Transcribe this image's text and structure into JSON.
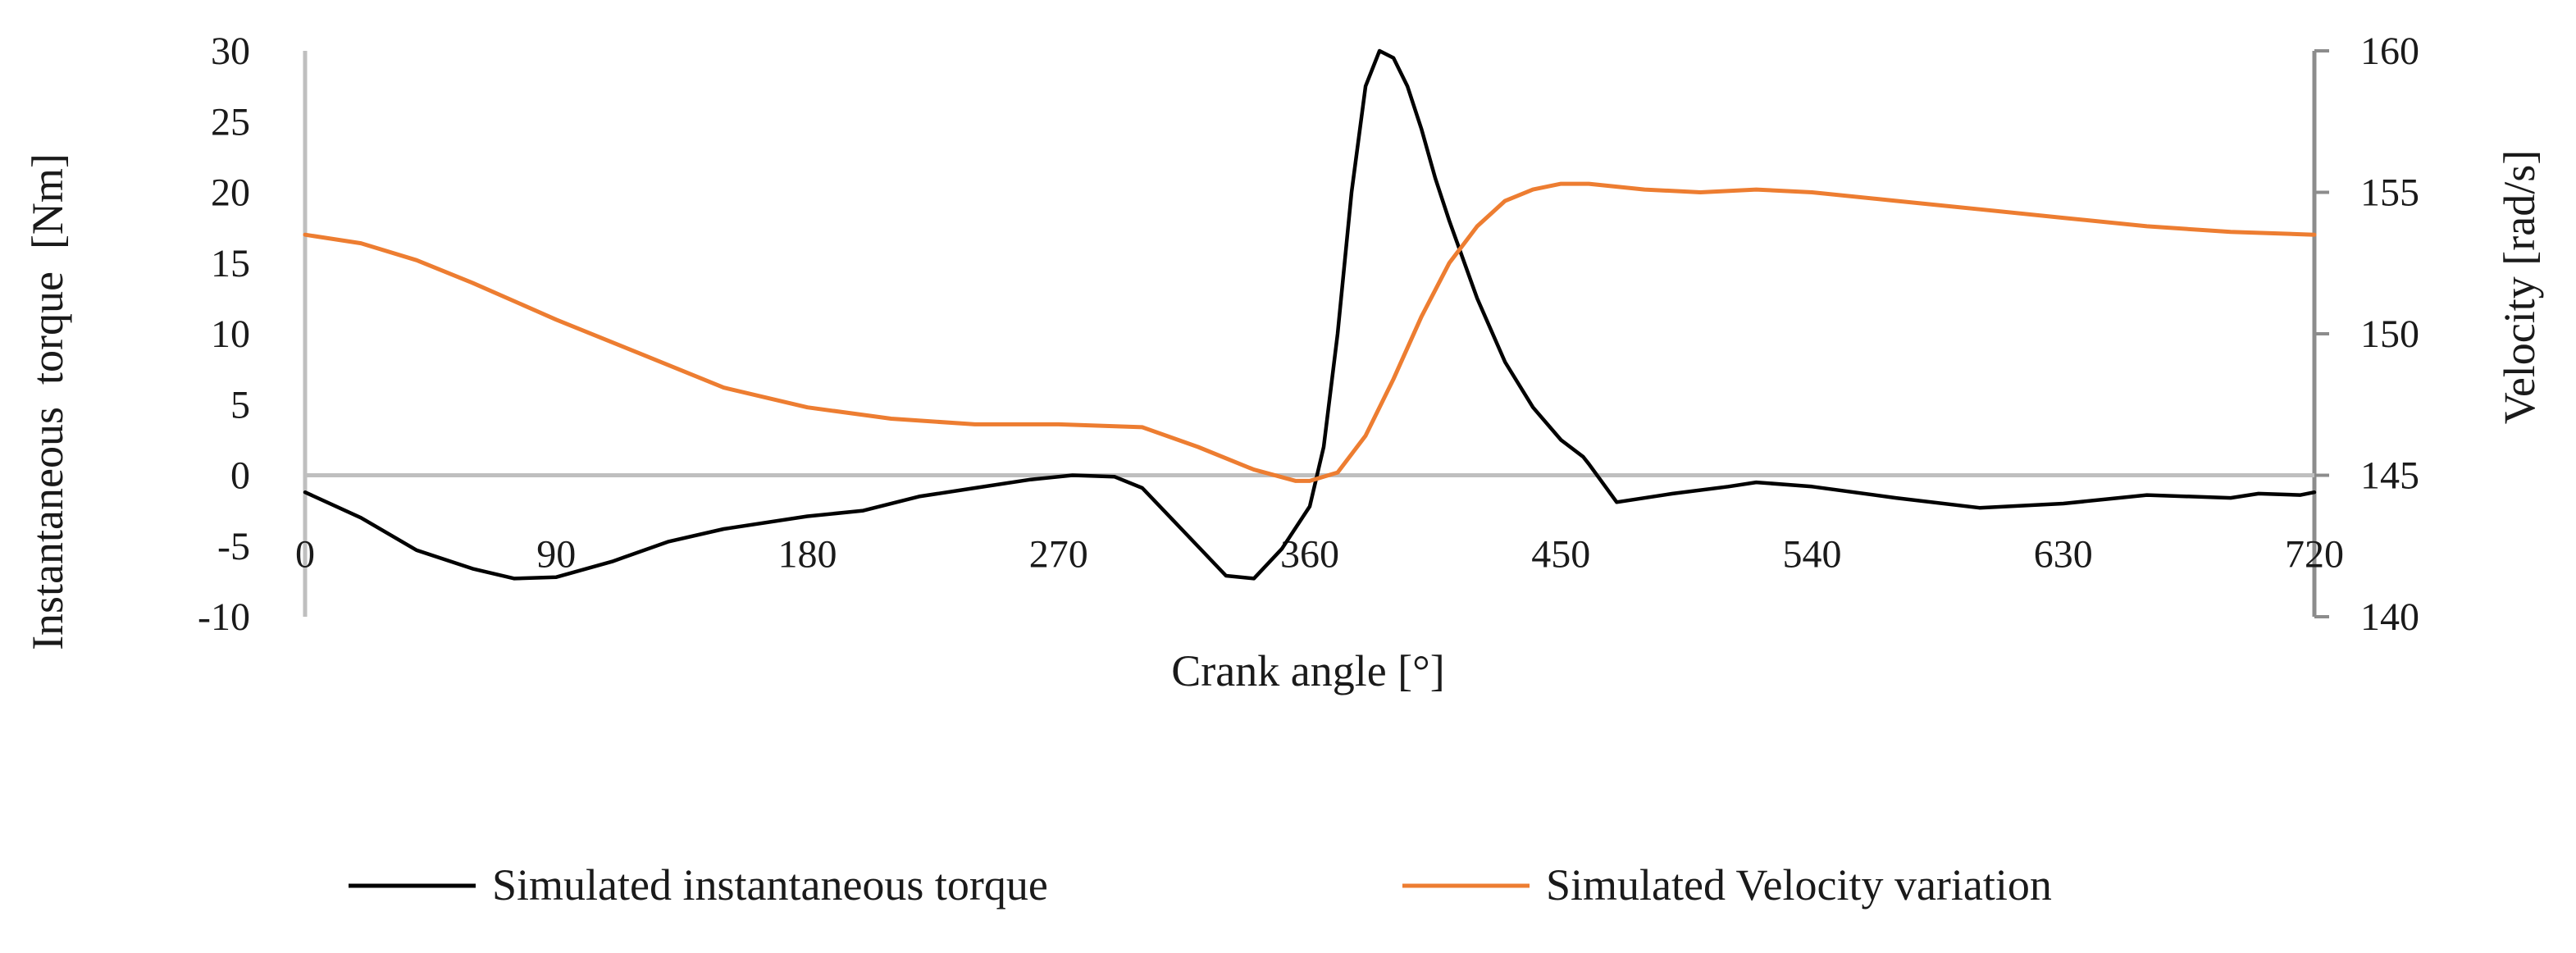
{
  "chart_data": {
    "type": "line",
    "xlabel": "Crank angle [°]",
    "ylabel_left": "Instantaneous  torque  [Nm]",
    "ylabel_right": "Velocity [rad/s]",
    "xlim": [
      0,
      720
    ],
    "ylim_left": [
      -10,
      30
    ],
    "ylim_right": [
      140,
      160
    ],
    "x_ticks": [
      "0",
      "90",
      "180",
      "270",
      "360",
      "450",
      "540",
      "630",
      "720"
    ],
    "y_left_ticks": [
      "30",
      "25",
      "20",
      "15",
      "10",
      "5",
      "0",
      "-5",
      "-10"
    ],
    "y_right_ticks": [
      "160",
      "155",
      "150",
      "145",
      "140"
    ],
    "grid": false,
    "legend_position": "bottom",
    "series": [
      {
        "name": "Simulated instantaneous torque",
        "axis": "left",
        "color": "#000000",
        "x": [
          0,
          20,
          40,
          60,
          75,
          90,
          110,
          130,
          150,
          180,
          200,
          220,
          240,
          260,
          275,
          290,
          300,
          315,
          330,
          340,
          350,
          360,
          365,
          370,
          375,
          380,
          385,
          390,
          395,
          400,
          405,
          410,
          420,
          430,
          440,
          450,
          458,
          460,
          470,
          490,
          510,
          520,
          540,
          570,
          600,
          630,
          660,
          690,
          700,
          715,
          720
        ],
        "y": [
          -1.2,
          -3.0,
          -5.3,
          -6.6,
          -7.3,
          -7.2,
          -6.1,
          -4.7,
          -3.8,
          -2.9,
          -2.5,
          -1.5,
          -0.9,
          -0.3,
          -0.0,
          -0.1,
          -0.9,
          -4.0,
          -7.1,
          -7.3,
          -5.2,
          -2.2,
          2.0,
          10.0,
          20.0,
          27.5,
          30.0,
          29.5,
          27.5,
          24.5,
          21.0,
          18.0,
          12.5,
          8.0,
          4.8,
          2.5,
          1.3,
          0.8,
          -1.9,
          -1.3,
          -0.8,
          -0.5,
          -0.8,
          -1.6,
          -2.3,
          -2.0,
          -1.4,
          -1.6,
          -1.3,
          -1.4,
          -1.2
        ]
      },
      {
        "name": "Simulated Velocity variation",
        "axis": "right",
        "color": "#ED7D31",
        "x": [
          0,
          20,
          40,
          60,
          90,
          120,
          150,
          180,
          210,
          240,
          270,
          300,
          320,
          340,
          355,
          360,
          370,
          380,
          390,
          400,
          410,
          420,
          430,
          440,
          450,
          460,
          480,
          500,
          520,
          540,
          570,
          600,
          630,
          660,
          690,
          720
        ],
        "y": [
          153.5,
          153.2,
          152.6,
          151.8,
          150.5,
          149.3,
          148.1,
          147.4,
          147.0,
          146.8,
          146.8,
          146.7,
          146.0,
          145.2,
          144.8,
          144.8,
          145.1,
          146.4,
          148.4,
          150.6,
          152.5,
          153.8,
          154.7,
          155.1,
          155.3,
          155.3,
          155.1,
          155.0,
          155.1,
          155.0,
          154.7,
          154.4,
          154.1,
          153.8,
          153.6,
          153.5
        ]
      }
    ]
  }
}
